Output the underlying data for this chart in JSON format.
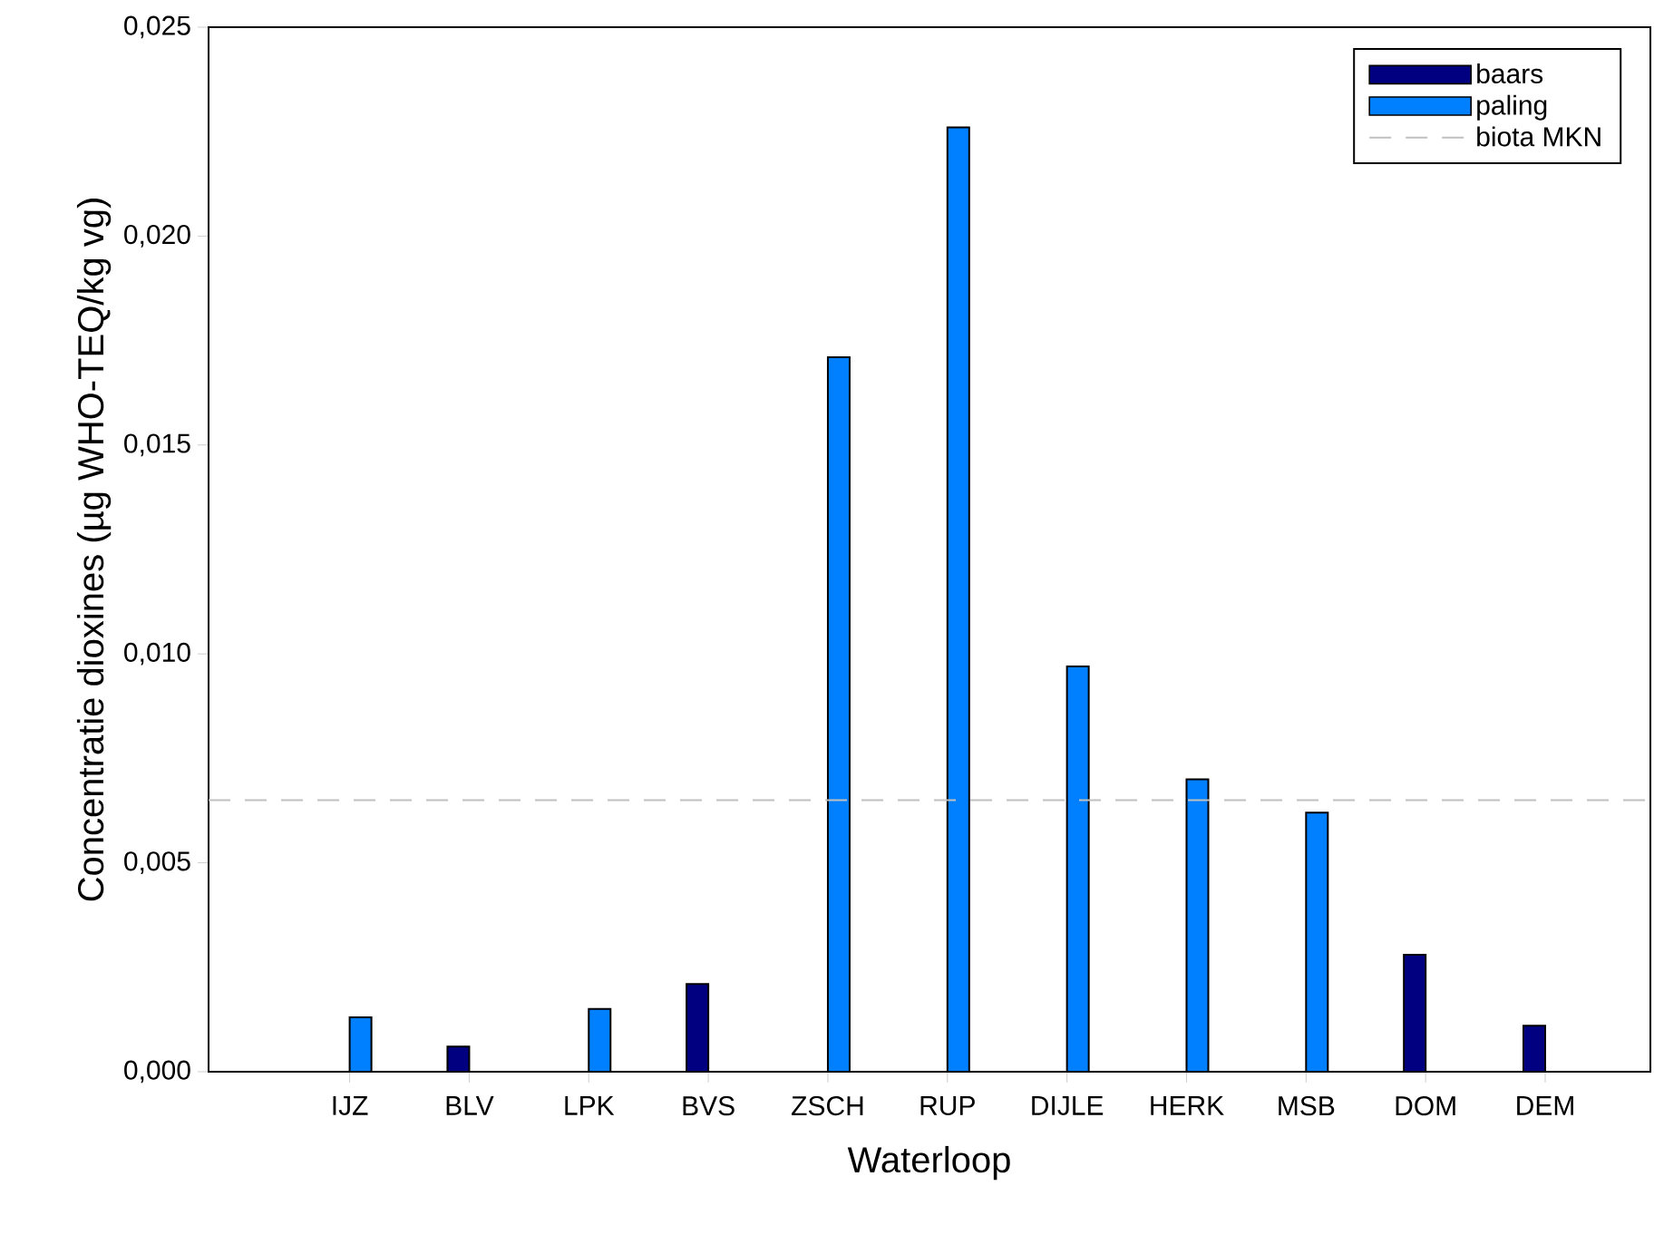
{
  "chart_data": {
    "type": "bar",
    "xlabel": "Waterloop",
    "ylabel": "Concentratie dioxines (µg WHO-TEQ/kg vg)",
    "categories": [
      "IJZ",
      "BLV",
      "LPK",
      "BVS",
      "ZSCH",
      "RUP",
      "DIJLE",
      "HERK",
      "MSB",
      "DOM",
      "DEM"
    ],
    "series": [
      {
        "name": "baars",
        "color": "#000080",
        "values": [
          null,
          0.0006,
          null,
          0.0021,
          null,
          null,
          null,
          null,
          null,
          0.0028,
          0.0011
        ]
      },
      {
        "name": "paling",
        "color": "#0080ff",
        "values": [
          0.0013,
          null,
          0.0015,
          null,
          0.0171,
          0.0226,
          0.0097,
          0.007,
          0.0062,
          null,
          null
        ]
      }
    ],
    "ylim": [
      0,
      0.025
    ],
    "yticks": [
      {
        "value": 0,
        "label": "0,000"
      },
      {
        "value": 0.005,
        "label": "0,005"
      },
      {
        "value": 0.01,
        "label": "0,010"
      },
      {
        "value": 0.015,
        "label": "0,015"
      },
      {
        "value": 0.02,
        "label": "0,020"
      },
      {
        "value": 0.025,
        "label": "0,025"
      }
    ],
    "ref_lines": [
      {
        "axis": "y",
        "value": 0.0065,
        "label": "biota MKN",
        "color": "#c0c0c0",
        "line_style": "dashed"
      }
    ],
    "legend": "top right",
    "grid": false
  }
}
